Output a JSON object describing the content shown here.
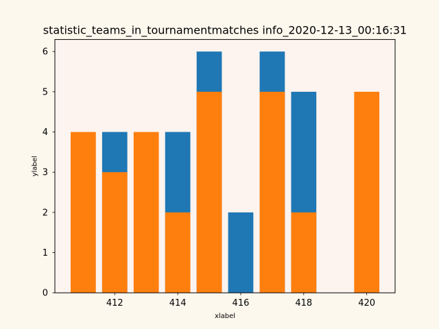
{
  "chart_data": {
    "type": "bar",
    "title": "statistic_teams_in_tournamentmatches info_2020-12-13_00:16:31",
    "xlabel": "xlabel",
    "ylabel": "ylabel",
    "xlim": [
      410.1,
      420.9
    ],
    "ylim": [
      0,
      6.3
    ],
    "x_ticks": [
      412,
      414,
      416,
      418,
      420
    ],
    "y_ticks": [
      0,
      1,
      2,
      3,
      4,
      5,
      6
    ],
    "bar_width": 0.8,
    "series": [
      {
        "color": "#1f77b4",
        "x": [
          412,
          414,
          415,
          416,
          417,
          418
        ],
        "values": [
          4,
          4,
          6,
          2,
          6,
          5
        ]
      },
      {
        "color": "#ff7f0e",
        "x": [
          411,
          412,
          413,
          414,
          415,
          417,
          418,
          420
        ],
        "values": [
          4,
          3,
          4,
          2,
          5,
          5,
          2,
          5
        ]
      }
    ],
    "colors": {
      "figure_bg": "#fdf8ee",
      "axes_bg": "#fdf4ef"
    },
    "grid": false,
    "legend": "none"
  }
}
